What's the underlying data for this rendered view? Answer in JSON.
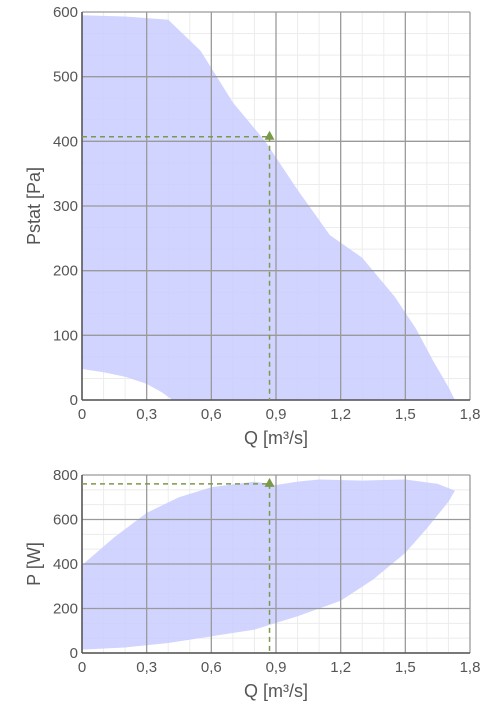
{
  "chart_data": [
    {
      "type": "area",
      "xlabel": "Q [m³/s]",
      "ylabel": "Pstat [Pa]",
      "xlim": [
        0,
        1.8
      ],
      "ylim": [
        0,
        600
      ],
      "x_ticks": [
        0,
        0.3,
        0.6,
        0.9,
        1.2,
        1.5,
        1.8
      ],
      "x_tick_labels": [
        "0",
        "0,3",
        "0,6",
        "0,9",
        "1,2",
        "1,5",
        "1,8"
      ],
      "y_ticks": [
        0,
        100,
        200,
        300,
        400,
        500,
        600
      ],
      "y_tick_labels": [
        "0",
        "100",
        "200",
        "300",
        "400",
        "500",
        "600"
      ],
      "grid": true,
      "fill_color": "#c9ccff",
      "operating_point": {
        "x": 0.87,
        "y": 407,
        "color": "#7a9a4a"
      },
      "envelope": {
        "upper": [
          [
            0,
            595
          ],
          [
            0.2,
            593
          ],
          [
            0.4,
            588
          ],
          [
            0.55,
            540
          ],
          [
            0.7,
            460
          ],
          [
            0.85,
            400
          ],
          [
            1.0,
            325
          ],
          [
            1.15,
            255
          ],
          [
            1.3,
            220
          ],
          [
            1.45,
            160
          ],
          [
            1.55,
            110
          ],
          [
            1.63,
            60
          ],
          [
            1.7,
            20
          ],
          [
            1.73,
            0
          ]
        ],
        "lower": [
          [
            0,
            48
          ],
          [
            0.1,
            43
          ],
          [
            0.2,
            36
          ],
          [
            0.3,
            25
          ],
          [
            0.37,
            12
          ],
          [
            0.42,
            0
          ]
        ]
      }
    },
    {
      "type": "area",
      "xlabel": "Q [m³/s]",
      "ylabel": "P [W]",
      "xlim": [
        0,
        1.8
      ],
      "ylim": [
        0,
        800
      ],
      "x_ticks": [
        0,
        0.3,
        0.6,
        0.9,
        1.2,
        1.5,
        1.8
      ],
      "x_tick_labels": [
        "0",
        "0,3",
        "0,6",
        "0,9",
        "1,2",
        "1,5",
        "1,8"
      ],
      "y_ticks": [
        0,
        200,
        400,
        600,
        800
      ],
      "y_tick_labels": [
        "0",
        "200",
        "400",
        "600",
        "800"
      ],
      "grid": true,
      "fill_color": "#c9ccff",
      "operating_point": {
        "x": 0.87,
        "y": 760,
        "color": "#7a9a4a"
      },
      "envelope": {
        "upper": [
          [
            0,
            395
          ],
          [
            0.15,
            520
          ],
          [
            0.3,
            630
          ],
          [
            0.45,
            700
          ],
          [
            0.6,
            745
          ],
          [
            0.8,
            770
          ],
          [
            0.9,
            755
          ],
          [
            1.0,
            770
          ],
          [
            1.1,
            780
          ],
          [
            1.3,
            775
          ],
          [
            1.5,
            780
          ],
          [
            1.65,
            760
          ],
          [
            1.73,
            730
          ]
        ],
        "lower": [
          [
            0,
            15
          ],
          [
            0.2,
            25
          ],
          [
            0.4,
            45
          ],
          [
            0.6,
            75
          ],
          [
            0.8,
            105
          ],
          [
            1.0,
            165
          ],
          [
            1.2,
            235
          ],
          [
            1.35,
            330
          ],
          [
            1.5,
            450
          ],
          [
            1.6,
            560
          ],
          [
            1.7,
            680
          ],
          [
            1.73,
            730
          ]
        ]
      }
    }
  ]
}
